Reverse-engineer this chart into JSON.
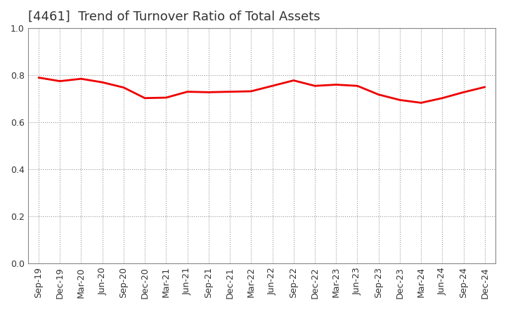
{
  "title": "[4461]  Trend of Turnover Ratio of Total Assets",
  "x_labels": [
    "Sep-19",
    "Dec-19",
    "Mar-20",
    "Jun-20",
    "Sep-20",
    "Dec-20",
    "Mar-21",
    "Jun-21",
    "Sep-21",
    "Dec-21",
    "Mar-22",
    "Jun-22",
    "Sep-22",
    "Dec-22",
    "Mar-23",
    "Jun-23",
    "Sep-23",
    "Dec-23",
    "Mar-24",
    "Jun-24",
    "Sep-24",
    "Dec-24"
  ],
  "y_values": [
    0.79,
    0.775,
    0.785,
    0.77,
    0.748,
    0.703,
    0.705,
    0.73,
    0.728,
    0.73,
    0.732,
    0.755,
    0.778,
    0.755,
    0.76,
    0.755,
    0.718,
    0.695,
    0.683,
    0.703,
    0.728,
    0.75
  ],
  "ylim": [
    0.0,
    1.0
  ],
  "yticks": [
    0.0,
    0.2,
    0.4,
    0.6,
    0.8,
    1.0
  ],
  "line_color": "#ee0000",
  "line_width": 2.0,
  "background_color": "#ffffff",
  "grid_color": "#999999",
  "title_fontsize": 13,
  "tick_fontsize": 9,
  "title_color": "#333333"
}
